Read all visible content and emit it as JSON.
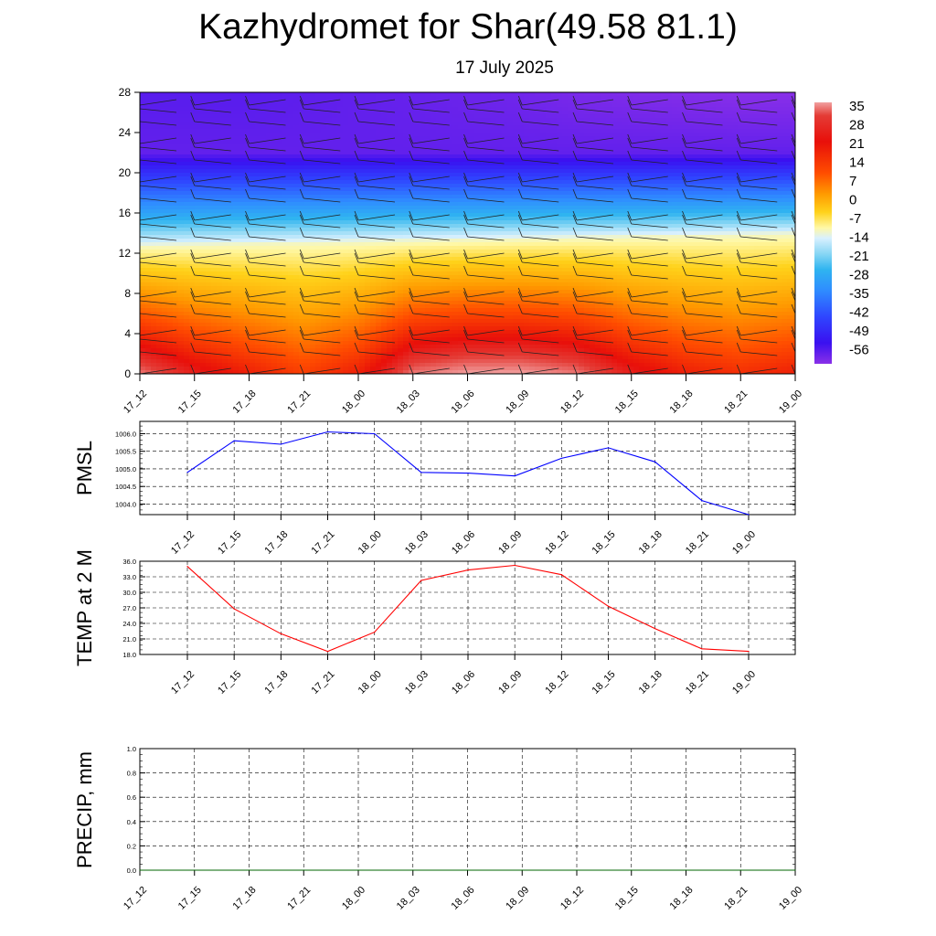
{
  "header": {
    "title": "Kazhydromet for Shar(49.58 81.1)",
    "date": "17 July 2025"
  },
  "chart_data": [
    {
      "type": "heatmap",
      "title": "",
      "xlabel": "",
      "ylabel": "",
      "x_ticks": [
        "17_12",
        "17_15",
        "17_18",
        "17_21",
        "18_00",
        "18_03",
        "18_06",
        "18_09",
        "18_12",
        "18_15",
        "18_18",
        "18_21",
        "19_00"
      ],
      "y_ticks": [
        0,
        4,
        8,
        12,
        16,
        20,
        24,
        28
      ],
      "ylim": [
        0,
        28
      ],
      "colorbar_labels": [
        "35",
        "28",
        "21",
        "14",
        "7",
        "0",
        "-7",
        "-14",
        "-21",
        "-28",
        "-35",
        "-42",
        "-49",
        "-56"
      ],
      "colorbar_range": [
        -60,
        38
      ],
      "surface_temp": [
        36,
        30,
        26,
        22,
        26,
        36,
        38,
        38,
        36,
        30,
        26,
        24,
        26
      ],
      "freezing_level": [
        12.7,
        12.8,
        12.9,
        13.0,
        13.1,
        13.2,
        13.3,
        13.4,
        13.5,
        13.6,
        13.7,
        13.8,
        13.9
      ],
      "top_temp": [
        -50,
        -50,
        -50,
        -51,
        -52,
        -53,
        -54,
        -55,
        -57,
        -58,
        -59,
        -60,
        -60
      ],
      "wind_barbs": true
    },
    {
      "type": "line",
      "ylabel": "PMSL",
      "categories": [
        "17_12",
        "17_15",
        "17_18",
        "17_21",
        "18_00",
        "18_03",
        "18_06",
        "18_09",
        "18_12",
        "18_15",
        "18_18",
        "18_21",
        "19_00"
      ],
      "series": [
        {
          "values": [
            1004.9,
            1005.8,
            1005.7,
            1006.05,
            1006.0,
            1004.9,
            1004.88,
            1004.8,
            1005.3,
            1005.6,
            1005.2,
            1004.1,
            1003.7
          ]
        }
      ],
      "y_ticks": [
        "1004.0",
        "1004.5",
        "1005.0",
        "1005.5",
        "1006.0"
      ],
      "ylim": [
        1003.7,
        1006.35
      ],
      "color": "#0000ff",
      "grid": true
    },
    {
      "type": "line",
      "ylabel": "TEMP at 2 M",
      "categories": [
        "17_12",
        "17_15",
        "17_18",
        "17_21",
        "18_00",
        "18_03",
        "18_06",
        "18_09",
        "18_12",
        "18_15",
        "18_18",
        "18_21",
        "19_00"
      ],
      "series": [
        {
          "values": [
            35.0,
            26.8,
            22.0,
            18.6,
            22.3,
            32.3,
            34.3,
            35.2,
            33.4,
            27.3,
            23.0,
            19.1,
            18.6
          ]
        }
      ],
      "y_ticks": [
        "18.0",
        "21.0",
        "24.0",
        "27.0",
        "30.0",
        "33.0",
        "36.0"
      ],
      "ylim": [
        18,
        36
      ],
      "color": "#ff0000",
      "grid": true
    },
    {
      "type": "line",
      "ylabel": "PRECIP, mm",
      "categories": [
        "17_12",
        "17_15",
        "17_18",
        "17_21",
        "18_00",
        "18_03",
        "18_06",
        "18_09",
        "18_12",
        "18_15",
        "18_18",
        "18_21",
        "19_00"
      ],
      "series": [
        {
          "values": [
            0,
            0,
            0,
            0,
            0,
            0,
            0,
            0,
            0,
            0,
            0,
            0,
            0
          ]
        }
      ],
      "y_ticks": [
        "0.0",
        "0.2",
        "0.4",
        "0.6",
        "0.8",
        "1.0"
      ],
      "ylim": [
        0,
        1
      ],
      "color": "#006400",
      "grid": true
    }
  ]
}
